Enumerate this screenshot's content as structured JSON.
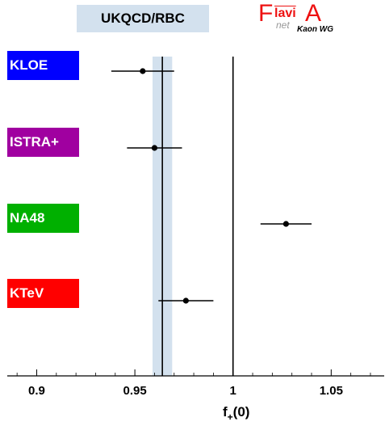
{
  "chart_data": {
    "type": "scatter",
    "title": "UKQCD/RBC",
    "xlabel_main": "f",
    "xlabel_sub": "+",
    "xlabel_tail": "(0)",
    "xlim": [
      0.885,
      1.077
    ],
    "xticks": [
      {
        "value": 0.9,
        "label": "0.9"
      },
      {
        "value": 0.95,
        "label": "0.95"
      },
      {
        "value": 1,
        "label": "1"
      },
      {
        "value": 1.05,
        "label": "1.05"
      }
    ],
    "band": {
      "center": 0.964,
      "low": 0.959,
      "high": 0.969,
      "color": "#d3e1ee"
    },
    "reference_line": 1.0,
    "points": [
      {
        "label": "KLOE",
        "color": "#0000ff",
        "value": 0.954,
        "low": 0.938,
        "high": 0.97
      },
      {
        "label": "ISTRA+",
        "color": "#a000a0",
        "value": 0.96,
        "low": 0.946,
        "high": 0.974
      },
      {
        "label": "NA48",
        "color": "#00b000",
        "value": 1.027,
        "low": 1.014,
        "high": 1.04
      },
      {
        "label": "KTeV",
        "color": "#ff0000",
        "value": 0.976,
        "low": 0.962,
        "high": 0.99
      }
    ]
  },
  "logo": {
    "part1": "F",
    "part2": "lavi",
    "part3": "A",
    "net": "net",
    "wg": "Kaon WG"
  }
}
